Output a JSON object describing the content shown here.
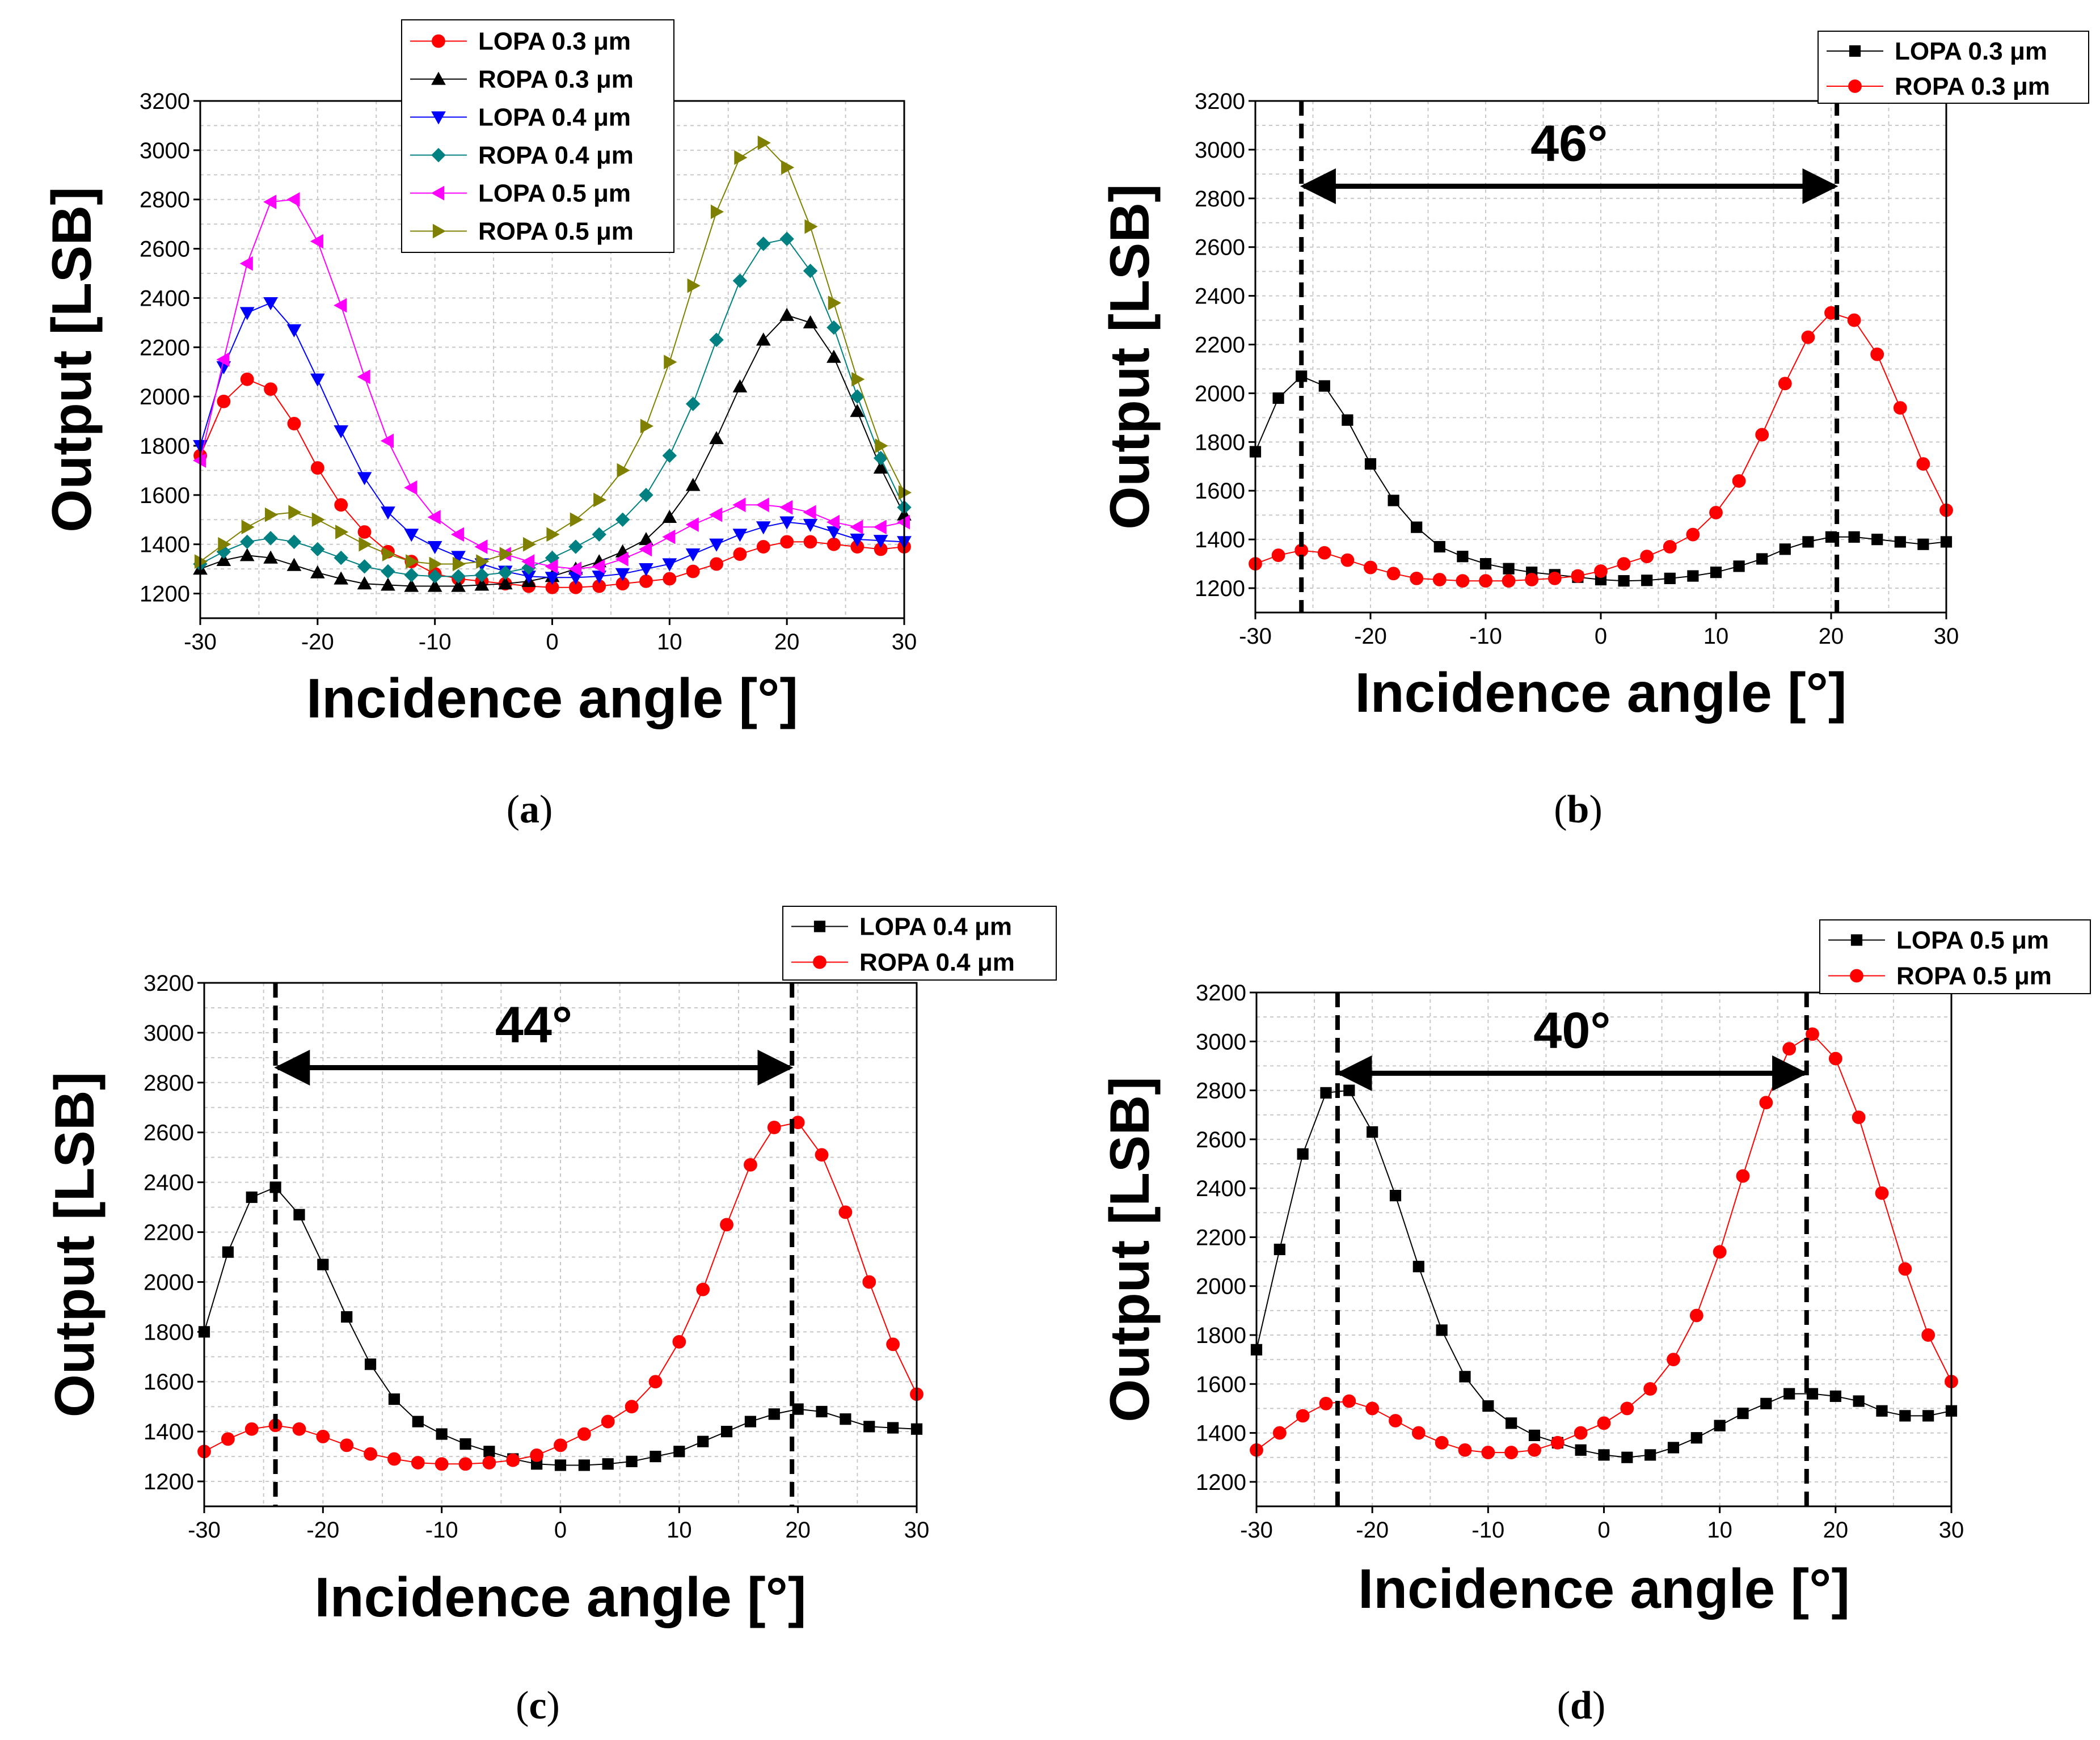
{
  "chart_data": [
    {
      "type": "line",
      "panel": "(a)",
      "caption_open": "(",
      "caption_letter": "a",
      "caption_close": ")",
      "xlabel": "Incidence angle [°]",
      "ylabel": "Output [LSB]",
      "xlim": [
        -30,
        30
      ],
      "ylim": [
        1100,
        3200
      ],
      "xticks": [
        -30,
        -20,
        -10,
        0,
        10,
        20,
        30
      ],
      "yticks": [
        1200,
        1400,
        1600,
        1800,
        2000,
        2200,
        2400,
        2600,
        2800,
        3000,
        3200
      ],
      "legend_position": "top-center",
      "x": [
        -30,
        -28,
        -26,
        -24,
        -22,
        -20,
        -18,
        -16,
        -14,
        -12,
        -10,
        -8,
        -6,
        -4,
        -2,
        0,
        2,
        4,
        6,
        8,
        10,
        12,
        14,
        16,
        18,
        20,
        22,
        24,
        26,
        28,
        30
      ],
      "series": [
        {
          "name": "LOPA 0.3 μm",
          "color": "#ff0000",
          "marker": "circle",
          "values": [
            1760,
            1980,
            2070,
            2030,
            1890,
            1710,
            1560,
            1450,
            1370,
            1330,
            1280,
            1260,
            1250,
            1240,
            1230,
            1225,
            1225,
            1230,
            1240,
            1250,
            1260,
            1290,
            1320,
            1360,
            1390,
            1410,
            1410,
            1400,
            1390,
            1380,
            1390
          ]
        },
        {
          "name": "ROPA 0.3 μm",
          "color": "#000000",
          "marker": "triangle-up",
          "values": [
            1300,
            1335,
            1355,
            1345,
            1315,
            1285,
            1260,
            1240,
            1235,
            1230,
            1230,
            1230,
            1235,
            1240,
            1250,
            1270,
            1300,
            1330,
            1370,
            1420,
            1510,
            1640,
            1830,
            2040,
            2230,
            2330,
            2300,
            2160,
            1940,
            1710,
            1520
          ]
        },
        {
          "name": "LOPA 0.4 μm",
          "color": "#0000ff",
          "marker": "triangle-down",
          "values": [
            1800,
            2120,
            2340,
            2380,
            2270,
            2070,
            1860,
            1670,
            1530,
            1440,
            1390,
            1350,
            1320,
            1290,
            1270,
            1265,
            1265,
            1270,
            1280,
            1300,
            1320,
            1360,
            1400,
            1440,
            1470,
            1490,
            1480,
            1450,
            1420,
            1415,
            1410
          ]
        },
        {
          "name": "ROPA 0.4 μm",
          "color": "#008080",
          "marker": "diamond",
          "values": [
            1320,
            1370,
            1410,
            1425,
            1410,
            1380,
            1345,
            1310,
            1290,
            1275,
            1270,
            1270,
            1275,
            1285,
            1305,
            1345,
            1390,
            1440,
            1500,
            1600,
            1760,
            1970,
            2230,
            2470,
            2620,
            2640,
            2510,
            2280,
            2000,
            1750,
            1550
          ]
        },
        {
          "name": "LOPA 0.5 μm",
          "color": "#ff00ff",
          "marker": "triangle-left",
          "values": [
            1740,
            2150,
            2540,
            2790,
            2800,
            2630,
            2370,
            2080,
            1820,
            1630,
            1510,
            1440,
            1390,
            1360,
            1330,
            1310,
            1300,
            1310,
            1340,
            1380,
            1430,
            1480,
            1520,
            1560,
            1560,
            1550,
            1530,
            1490,
            1470,
            1470,
            1490
          ]
        },
        {
          "name": "ROPA 0.5 μm",
          "color": "#808000",
          "marker": "triangle-right",
          "values": [
            1330,
            1400,
            1470,
            1520,
            1530,
            1500,
            1450,
            1400,
            1360,
            1330,
            1320,
            1320,
            1330,
            1360,
            1400,
            1440,
            1500,
            1580,
            1700,
            1880,
            2140,
            2450,
            2750,
            2970,
            3030,
            2930,
            2690,
            2380,
            2070,
            1800,
            1610
          ]
        }
      ]
    },
    {
      "type": "line",
      "panel": "(b)",
      "caption_open": "(",
      "caption_letter": "b",
      "caption_close": ")",
      "xlabel": "Incidence angle [°]",
      "ylabel": "Output [LSB]",
      "xlim": [
        -30,
        30
      ],
      "ylim": [
        1100,
        3200
      ],
      "xticks": [
        -30,
        -20,
        -10,
        0,
        10,
        20,
        30
      ],
      "yticks": [
        1200,
        1400,
        1600,
        1800,
        2000,
        2200,
        2400,
        2600,
        2800,
        3000,
        3200
      ],
      "legend_position": "top-right",
      "annotation": {
        "text": "46°",
        "x_start": -26,
        "x_end": 20.5,
        "arrow_y": 2850
      },
      "x": [
        -30,
        -28,
        -26,
        -24,
        -22,
        -20,
        -18,
        -16,
        -14,
        -12,
        -10,
        -8,
        -6,
        -4,
        -2,
        0,
        2,
        4,
        6,
        8,
        10,
        12,
        14,
        16,
        18,
        20,
        22,
        24,
        26,
        28,
        30
      ],
      "series": [
        {
          "name": "LOPA 0.3 μm",
          "color": "#000000",
          "marker": "square",
          "values": [
            1760,
            1980,
            2070,
            2030,
            1890,
            1710,
            1560,
            1450,
            1370,
            1330,
            1300,
            1280,
            1265,
            1255,
            1245,
            1235,
            1230,
            1232,
            1240,
            1250,
            1265,
            1290,
            1320,
            1360,
            1390,
            1410,
            1410,
            1400,
            1390,
            1380,
            1390
          ]
        },
        {
          "name": "ROPA 0.3 μm",
          "color": "#ff0000",
          "marker": "circle",
          "values": [
            1300,
            1335,
            1355,
            1345,
            1315,
            1285,
            1260,
            1240,
            1235,
            1230,
            1230,
            1230,
            1235,
            1240,
            1250,
            1270,
            1300,
            1330,
            1370,
            1420,
            1510,
            1640,
            1830,
            2040,
            2230,
            2330,
            2300,
            2160,
            1940,
            1710,
            1520
          ]
        }
      ]
    },
    {
      "type": "line",
      "panel": "(c)",
      "caption_open": "(",
      "caption_letter": "c",
      "caption_close": ")",
      "xlabel": "Incidence angle [°]",
      "ylabel": "Output [LSB]",
      "xlim": [
        -30,
        30
      ],
      "ylim": [
        1100,
        3200
      ],
      "xticks": [
        -30,
        -20,
        -10,
        0,
        10,
        20,
        30
      ],
      "yticks": [
        1200,
        1400,
        1600,
        1800,
        2000,
        2200,
        2400,
        2600,
        2800,
        3000,
        3200
      ],
      "legend_position": "top-right",
      "annotation": {
        "text": "44°",
        "x_start": -24,
        "x_end": 19.5,
        "arrow_y": 2860
      },
      "x": [
        -30,
        -28,
        -26,
        -24,
        -22,
        -20,
        -18,
        -16,
        -14,
        -12,
        -10,
        -8,
        -6,
        -4,
        -2,
        0,
        2,
        4,
        6,
        8,
        10,
        12,
        14,
        16,
        18,
        20,
        22,
        24,
        26,
        28,
        30
      ],
      "series": [
        {
          "name": "LOPA 0.4 μm",
          "color": "#000000",
          "marker": "square",
          "values": [
            1800,
            2120,
            2340,
            2380,
            2270,
            2070,
            1860,
            1670,
            1530,
            1440,
            1390,
            1350,
            1320,
            1290,
            1270,
            1265,
            1265,
            1270,
            1280,
            1300,
            1320,
            1360,
            1400,
            1440,
            1470,
            1490,
            1480,
            1450,
            1420,
            1415,
            1410
          ]
        },
        {
          "name": "ROPA 0.4 μm",
          "color": "#ff0000",
          "marker": "circle",
          "values": [
            1320,
            1370,
            1410,
            1425,
            1410,
            1380,
            1345,
            1310,
            1290,
            1275,
            1270,
            1270,
            1275,
            1285,
            1305,
            1345,
            1390,
            1440,
            1500,
            1600,
            1760,
            1970,
            2230,
            2470,
            2620,
            2640,
            2510,
            2280,
            2000,
            1750,
            1550
          ]
        }
      ]
    },
    {
      "type": "line",
      "panel": "(d)",
      "caption_open": "(",
      "caption_letter": "d",
      "caption_close": ")",
      "xlabel": "Incidence angle [°]",
      "ylabel": "Output [LSB]",
      "xlim": [
        -30,
        30
      ],
      "ylim": [
        1100,
        3200
      ],
      "xticks": [
        -30,
        -20,
        -10,
        0,
        10,
        20,
        30
      ],
      "yticks": [
        1200,
        1400,
        1600,
        1800,
        2000,
        2200,
        2400,
        2600,
        2800,
        3000,
        3200
      ],
      "legend_position": "top-right",
      "annotation": {
        "text": "40°",
        "x_start": -23,
        "x_end": 17.5,
        "arrow_y": 2870
      },
      "x": [
        -30,
        -28,
        -26,
        -24,
        -22,
        -20,
        -18,
        -16,
        -14,
        -12,
        -10,
        -8,
        -6,
        -4,
        -2,
        0,
        2,
        4,
        6,
        8,
        10,
        12,
        14,
        16,
        18,
        20,
        22,
        24,
        26,
        28,
        30
      ],
      "series": [
        {
          "name": "LOPA 0.5 μm",
          "color": "#000000",
          "marker": "square",
          "values": [
            1740,
            2150,
            2540,
            2790,
            2800,
            2630,
            2370,
            2080,
            1820,
            1630,
            1510,
            1440,
            1390,
            1360,
            1330,
            1310,
            1300,
            1310,
            1340,
            1380,
            1430,
            1480,
            1520,
            1560,
            1560,
            1550,
            1530,
            1490,
            1470,
            1470,
            1490
          ]
        },
        {
          "name": "ROPA 0.5 μm",
          "color": "#ff0000",
          "marker": "circle",
          "values": [
            1330,
            1400,
            1470,
            1520,
            1530,
            1500,
            1450,
            1400,
            1360,
            1330,
            1320,
            1320,
            1330,
            1360,
            1400,
            1440,
            1500,
            1580,
            1700,
            1880,
            2140,
            2450,
            2750,
            2970,
            3030,
            2930,
            2690,
            2380,
            2070,
            1800,
            1610
          ]
        }
      ]
    }
  ]
}
